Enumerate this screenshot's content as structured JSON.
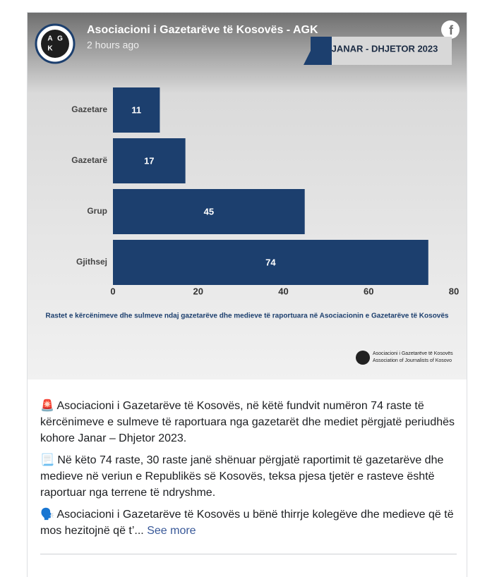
{
  "post": {
    "author": "Asociacioni i Gazetarëve të Kosovës - AGK",
    "time": "2 hours ago",
    "avatar_letters": [
      "A",
      "G",
      "K"
    ],
    "paragraphs": [
      "🚨 Asociacioni i Gazetarëve të Kosovës, në këtë fundvit numëron 74 raste të kërcënimeve e sulmeve të raportuara nga gazetarët dhe mediet përgjatë periudhës kohore Janar – Dhjetor 2023.",
      "📃 Në këto 74 raste, 30 raste janë shënuar përgjatë raportimit të gazetarëve dhe medieve në veriun e Republikës së Kosovës, teksa pjesa tjetër e rasteve është raportuar nga terrene të ndryshme.",
      "🗣️ Asociacioni i Gazetarëve të Kosovës u bënë thirrje kolegëve dhe medieve që të mos hezitojnë që t’..."
    ],
    "see_more": "See more"
  },
  "image": {
    "banner": "JANAR - DHJETOR 2023",
    "logo_lines": [
      "Asociacioni i Gazetarëve të Kosovës",
      "Association of Journalists of Kosovo"
    ]
  },
  "chart_data": {
    "type": "bar",
    "orientation": "horizontal",
    "categories": [
      "Gazetare",
      "Gazetarë",
      "Grup",
      "Gjithsej"
    ],
    "values": [
      11,
      17,
      45,
      74
    ],
    "color": "#1c3f6e",
    "xlim": [
      0,
      80
    ],
    "xticks": [
      0,
      20,
      40,
      60,
      80
    ],
    "caption": "Rastet e kërcënimeve dhe sulmeve ndaj gazetarëve dhe medieve të raportuara në Asociacionin e Gazetarëve të Kosovës"
  }
}
